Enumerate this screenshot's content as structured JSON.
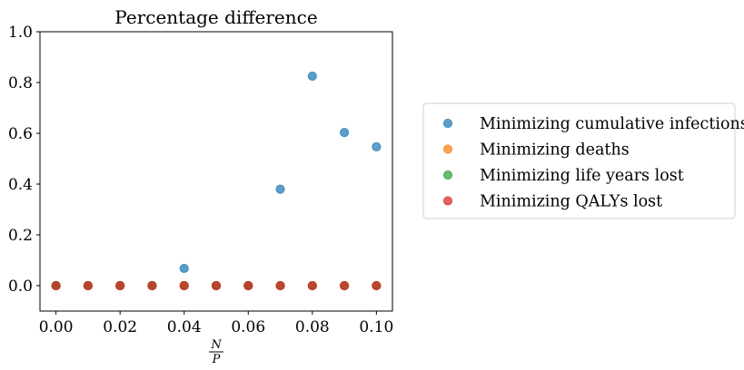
{
  "chart_data": {
    "type": "scatter",
    "title": "Percentage difference",
    "xlabel_numerator": "N",
    "xlabel_denominator": "P",
    "ylabel": "",
    "xlim": [
      -0.005,
      0.105
    ],
    "ylim": [
      -0.1,
      1.0
    ],
    "xticks": [
      0.0,
      0.02,
      0.04,
      0.06,
      0.08,
      0.1
    ],
    "xtick_labels": [
      "0.00",
      "0.02",
      "0.04",
      "0.06",
      "0.08",
      "0.10"
    ],
    "yticks": [
      0.0,
      0.2,
      0.4,
      0.6,
      0.8,
      1.0
    ],
    "ytick_labels": [
      "0.0",
      "0.2",
      "0.4",
      "0.6",
      "0.8",
      "1.0"
    ],
    "grid": false,
    "legend_position": "right, outside",
    "x": [
      0.0,
      0.01,
      0.02,
      0.03,
      0.04,
      0.05,
      0.06,
      0.07,
      0.08,
      0.09,
      0.1
    ],
    "series": [
      {
        "name": "Minimizing cumulative infections",
        "color": "#1f77b4",
        "values": [
          0.0,
          0.0,
          0.0,
          0.0,
          0.068,
          0.0,
          0.0,
          0.38,
          0.825,
          0.603,
          0.547
        ]
      },
      {
        "name": "Minimizing deaths",
        "color": "#ff7f0e",
        "values": [
          0.0,
          0.0,
          0.0,
          0.0,
          0.0,
          0.0,
          0.0,
          0.0,
          0.0,
          0.0,
          0.0
        ]
      },
      {
        "name": "Minimizing life years lost",
        "color": "#2ca02c",
        "values": [
          0.0,
          0.0,
          0.0,
          0.0,
          0.0,
          0.0,
          0.0,
          0.0,
          0.0,
          0.0,
          0.0
        ]
      },
      {
        "name": "Minimizing QALYs lost",
        "color": "#d62728",
        "values": [
          0.0,
          0.0,
          0.0,
          0.0,
          0.0,
          0.0,
          0.0,
          0.0,
          0.0,
          0.0,
          0.0
        ]
      }
    ]
  }
}
